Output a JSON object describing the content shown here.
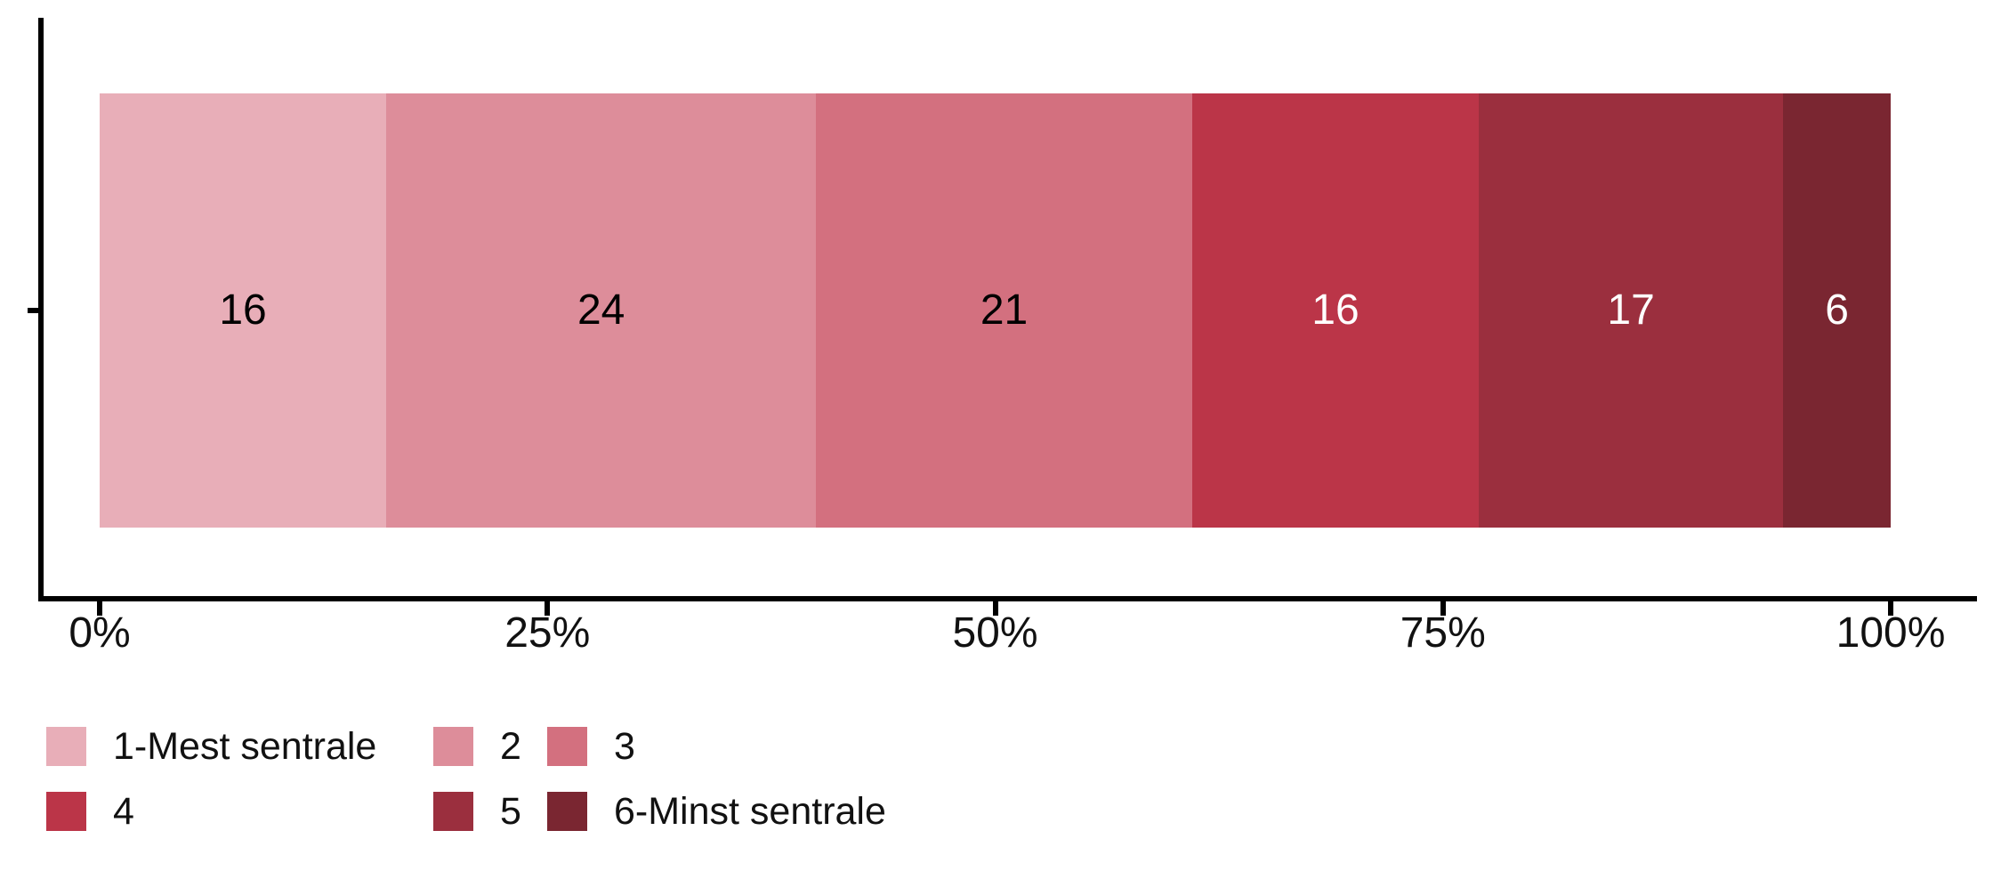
{
  "chart_data": {
    "type": "bar",
    "variant": "horizontal-stacked-percent",
    "title": "",
    "xlabel": "",
    "ylabel": "",
    "categories": [
      ""
    ],
    "series": [
      {
        "name": "1-Mest sentrale",
        "value": 16,
        "color": "#E8AEB8",
        "label": "16",
        "label_color": "#000000"
      },
      {
        "name": "2",
        "value": 24,
        "color": "#DD8D9A",
        "label": "24",
        "label_color": "#000000"
      },
      {
        "name": "3",
        "value": 21,
        "color": "#D3707F",
        "label": "21",
        "label_color": "#000000"
      },
      {
        "name": "4",
        "value": 16,
        "color": "#BB3548",
        "label": "16",
        "label_color": "#FFFFFF"
      },
      {
        "name": "5",
        "value": 17,
        "color": "#9B2F3E",
        "label": "17",
        "label_color": "#FFFFFF"
      },
      {
        "name": "6-Minst sentrale",
        "value": 6,
        "color": "#7A2631",
        "label": "6",
        "label_color": "#FFFFFF"
      }
    ],
    "x_axis": {
      "range": [
        0,
        100
      ],
      "tick_values": [
        0,
        25,
        50,
        75,
        100
      ],
      "tick_labels": [
        "0%",
        "25%",
        "50%",
        "75%",
        "100%"
      ]
    },
    "y_axis": {
      "tick_count": 1,
      "tick_labels": [
        ""
      ]
    },
    "grid": false,
    "legend": {
      "position": "bottom",
      "rows": 2,
      "entries": [
        "1-Mest sentrale",
        "2",
        "3",
        "4",
        "5",
        "6-Minst sentrale"
      ]
    },
    "axis_color": "#000000",
    "background_color": "#FFFFFF"
  }
}
